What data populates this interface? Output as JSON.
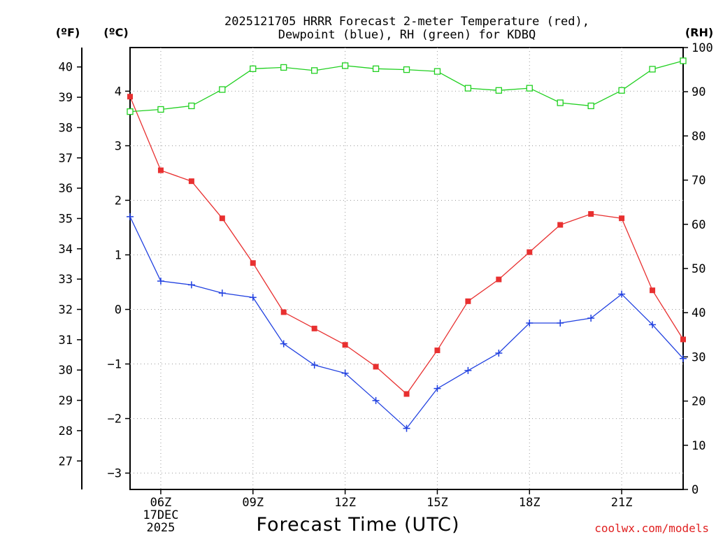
{
  "chart_data": {
    "type": "line",
    "title_line1": "2025121705 HRRR Forecast 2-meter Temperature (red),",
    "title_line2": "Dewpoint (blue), RH (green) for KDBQ",
    "xlabel": "Forecast Time (UTC)",
    "unit_f": "(ºF)",
    "unit_c": "(ºC)",
    "unit_rh": "(RH)",
    "credit": "coolwx.com/models",
    "x_hours": [
      5,
      6,
      7,
      8,
      9,
      10,
      11,
      12,
      13,
      14,
      15,
      16,
      17,
      18,
      19,
      20,
      21,
      22,
      23
    ],
    "x_ticks": [
      {
        "hour": 6,
        "label": "06Z",
        "sub1": "17DEC",
        "sub2": "2025"
      },
      {
        "hour": 9,
        "label": "09Z"
      },
      {
        "hour": 12,
        "label": "12Z"
      },
      {
        "hour": 15,
        "label": "15Z"
      },
      {
        "hour": 18,
        "label": "18Z"
      },
      {
        "hour": 21,
        "label": "21Z"
      }
    ],
    "ylim_c": [
      -3.3,
      4.8
    ],
    "yticks_c": [
      "-3",
      "-2",
      "-1",
      "0",
      "1",
      "2",
      "3",
      "4"
    ],
    "yticks_f": [
      "27",
      "28",
      "29",
      "30",
      "31",
      "32",
      "33",
      "34",
      "35",
      "36",
      "37",
      "38",
      "39",
      "40"
    ],
    "ylim_rh": [
      0,
      100
    ],
    "yticks_rh": [
      "0",
      "10",
      "20",
      "30",
      "40",
      "50",
      "60",
      "70",
      "80",
      "90",
      "100"
    ],
    "series": [
      {
        "name": "Temperature",
        "color": "#e83030",
        "marker": "square-filled",
        "values": [
          3.9,
          2.55,
          2.35,
          1.67,
          0.85,
          -0.05,
          -0.35,
          -0.65,
          -1.05,
          -1.55,
          -0.75,
          0.15,
          0.55,
          1.05,
          1.55,
          1.75,
          1.67,
          0.35,
          -0.55
        ]
      },
      {
        "name": "Dewpoint",
        "color": "#2040e0",
        "marker": "plus",
        "values": [
          1.7,
          0.52,
          0.45,
          0.3,
          0.22,
          -0.63,
          -1.02,
          -1.17,
          -1.67,
          -2.18,
          -1.45,
          -1.12,
          -0.8,
          -0.25,
          -0.25,
          -0.16,
          0.28,
          -0.28,
          -0.9
        ]
      },
      {
        "name": "RH",
        "color": "#20d020",
        "marker": "square-open",
        "values": [
          85.5,
          86.0,
          86.8,
          90.5,
          95.2,
          95.5,
          94.8,
          95.9,
          95.2,
          95.0,
          94.6,
          90.8,
          90.3,
          90.8,
          87.5,
          86.8,
          90.3,
          95.1,
          97.0
        ]
      }
    ]
  }
}
